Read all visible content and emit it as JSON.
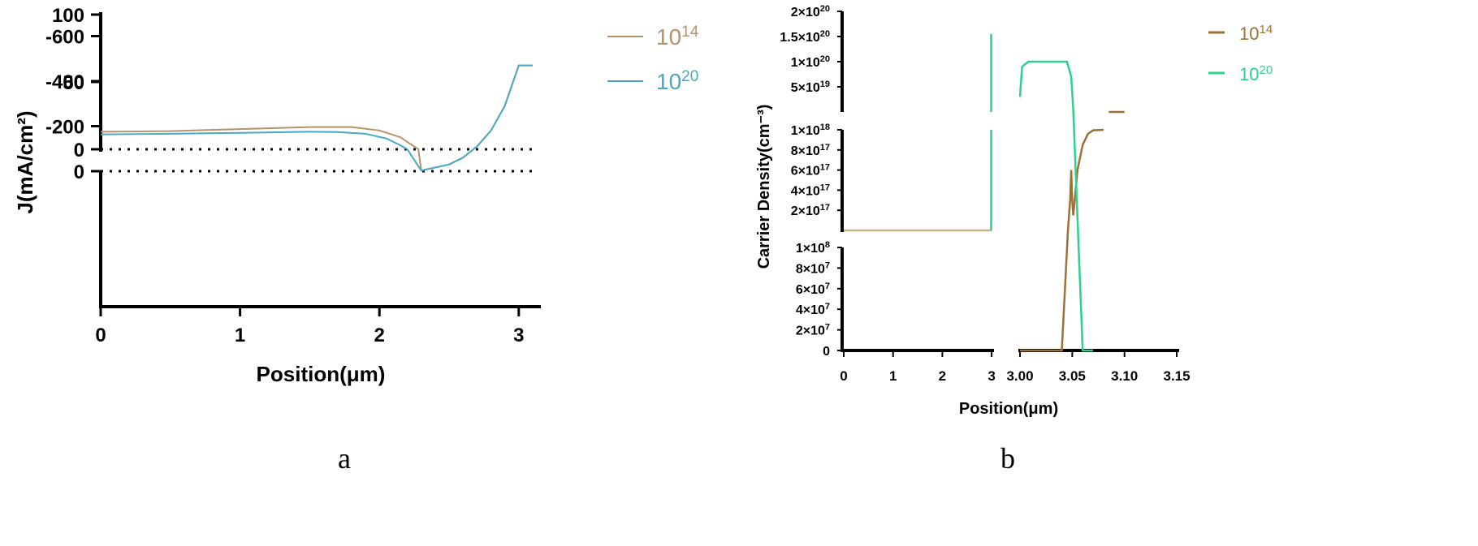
{
  "chart_data": [
    {
      "type": "line",
      "panel_label": "a",
      "xlabel": "Position(μm)",
      "ylabel": "J(mA/cm²)",
      "xlim": [
        0,
        3.1
      ],
      "x_ticks": [
        "0",
        "1",
        "2",
        "3"
      ],
      "y_axis_segments": [
        {
          "ylim": [
            0,
            100
          ],
          "ticks": [
            "100",
            "50",
            "0"
          ]
        },
        {
          "ylim": [
            -600,
            0
          ],
          "ticks": [
            "0",
            "-200",
            "-400",
            "-600"
          ]
        }
      ],
      "reference_lines": [
        {
          "y": 0,
          "style": "dotted"
        }
      ],
      "series": [
        {
          "name": "10^14",
          "legend_base": "10",
          "legend_exp": "14",
          "color": "#b5936a",
          "x": [
            0,
            0.5,
            1.0,
            1.5,
            1.8,
            2.0,
            2.15,
            2.25,
            2.28,
            2.3,
            2.5,
            2.6,
            2.7,
            2.8,
            2.9,
            3.0,
            3.1
          ],
          "y": [
            13,
            13.5,
            15,
            16.5,
            16.5,
            14,
            9,
            2,
            0,
            -3,
            -30,
            -60,
            -110,
            -180,
            -290,
            -470,
            -470
          ]
        },
        {
          "name": "10^20",
          "legend_base": "10",
          "legend_exp": "20",
          "color": "#4aa8c4",
          "x": [
            0,
            0.5,
            1.0,
            1.5,
            1.7,
            1.9,
            2.05,
            2.15,
            2.2,
            2.3,
            2.5,
            2.6,
            2.7,
            2.8,
            2.9,
            3.0,
            3.1
          ],
          "y": [
            11,
            11.5,
            12.2,
            13,
            12.8,
            11.5,
            8,
            3,
            0,
            -3,
            -30,
            -60,
            -110,
            -180,
            -290,
            -470,
            -470
          ]
        }
      ]
    },
    {
      "type": "line",
      "panel_label": "b",
      "xlabel": "Position(μm)",
      "ylabel": "Carrier Density(cm⁻³)",
      "x_segments": [
        {
          "xlim": [
            0,
            3
          ],
          "ticks": [
            "0",
            "1",
            "2",
            "3"
          ]
        },
        {
          "xlim": [
            3.0,
            3.15
          ],
          "ticks": [
            "3.00",
            "3.05",
            "3.10",
            "3.15"
          ]
        }
      ],
      "y_segments": [
        {
          "ylim": [
            0,
            100000000.0
          ],
          "tick_values": [
            0,
            20000000.0,
            40000000.0,
            60000000.0,
            80000000.0,
            100000000.0
          ],
          "ticks": [
            {
              "base": "0",
              "exp": ""
            },
            {
              "base": "2×10",
              "exp": "7"
            },
            {
              "base": "4×10",
              "exp": "7"
            },
            {
              "base": "6×10",
              "exp": "7"
            },
            {
              "base": "8×10",
              "exp": "7"
            },
            {
              "base": "1×10",
              "exp": "8"
            }
          ]
        },
        {
          "ylim": [
            0,
            1e+18
          ],
          "tick_values": [
            2e+17,
            4e+17,
            6e+17,
            8e+17,
            1e+18
          ],
          "ticks": [
            {
              "base": "2×10",
              "exp": "17"
            },
            {
              "base": "4×10",
              "exp": "17"
            },
            {
              "base": "6×10",
              "exp": "17"
            },
            {
              "base": "8×10",
              "exp": "17"
            },
            {
              "base": "1×10",
              "exp": "18"
            }
          ]
        },
        {
          "ylim": [
            0,
            2e+20
          ],
          "tick_values": [
            5e+19,
            1e+20,
            1.5e+20,
            2e+20
          ],
          "ticks": [
            {
              "base": "5×10",
              "exp": "19"
            },
            {
              "base": "1×10",
              "exp": "20"
            },
            {
              "base": "1.5×10",
              "exp": "20"
            },
            {
              "base": "2×10",
              "exp": "20"
            }
          ]
        }
      ],
      "series": [
        {
          "name": "10^14",
          "legend_base": "10",
          "legend_exp": "14",
          "color": "#9b7138",
          "points": [
            [
              0,
              100000000000000.0
            ],
            [
              3.0,
              100000000000000.0
            ],
            [
              3.04,
              100000000000000.0
            ],
            [
              3.046,
              2e+16
            ],
            [
              3.048,
              3e+17
            ],
            [
              3.049,
              6e+17
            ],
            [
              3.05,
              3e+17
            ],
            [
              3.051,
              1.5e+17
            ],
            [
              3.055,
              6e+17
            ],
            [
              3.06,
              8.5e+17
            ],
            [
              3.065,
              9.6e+17
            ],
            [
              3.07,
              9.95e+17
            ],
            [
              3.08,
              1e+18
            ]
          ],
          "extra": [
            [
              3.085,
              1e+18
            ],
            [
              3.1,
              1e+18
            ]
          ]
        },
        {
          "name": "10^20",
          "legend_base": "10",
          "legend_exp": "20",
          "color": "#2ed18c",
          "points": [
            [
              0,
              100000000000000.0
            ],
            [
              2.99,
              100000000000000.0
            ],
            [
              3.0,
              1.55e+20
            ],
            [
              3.0,
              1e+20
            ],
            [
              3.01,
              1e+20
            ],
            [
              3.04,
              1e+20
            ],
            [
              3.05,
              1e+20
            ],
            [
              3.055,
              5e+17
            ],
            [
              3.07,
              5e+17
            ]
          ]
        }
      ]
    }
  ]
}
